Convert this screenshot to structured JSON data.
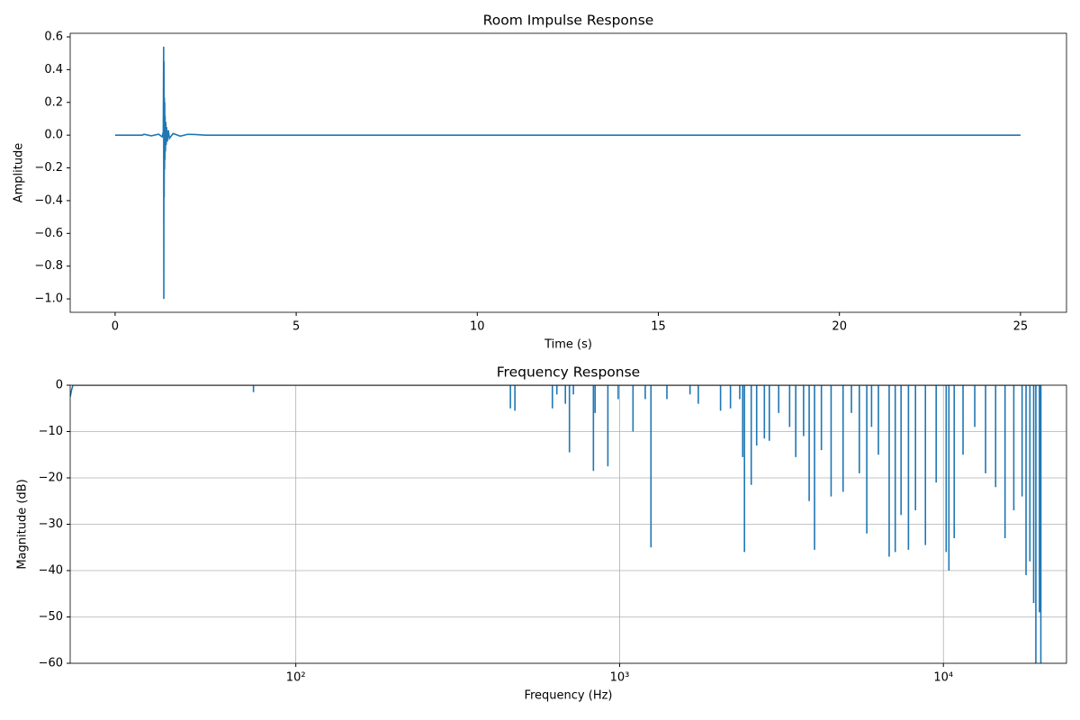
{
  "chart_data": [
    {
      "type": "line",
      "title": "Room Impulse Response",
      "xlabel": "Time (s)",
      "ylabel": "Amplitude",
      "color": "#1f77b4",
      "xlim": [
        -1.24,
        26.27
      ],
      "ylim": [
        -1.082,
        0.622
      ],
      "xticks": [
        0,
        5,
        10,
        15,
        20,
        25
      ],
      "yticks": [
        {
          "value": -1.0,
          "label": "−1.0"
        },
        {
          "value": -0.8,
          "label": "−0.8"
        },
        {
          "value": -0.6,
          "label": "−0.6"
        },
        {
          "value": -0.4,
          "label": "−0.4"
        },
        {
          "value": -0.2,
          "label": "−0.2"
        },
        {
          "value": 0,
          "label": "0.0"
        },
        0.2,
        0.4,
        0.6
      ],
      "grid": false,
      "x": [
        0,
        0.75,
        0.8,
        1.0,
        1.2,
        1.3,
        1.33,
        1.34,
        1.345,
        1.35,
        1.355,
        1.36,
        1.365,
        1.37,
        1.375,
        1.38,
        1.39,
        1.4,
        1.41,
        1.42,
        1.44,
        1.47,
        1.5,
        1.6,
        1.8,
        2.0,
        2.2,
        2.5,
        25
      ],
      "values": [
        0,
        0,
        0.005,
        -0.004,
        0.006,
        -0.01,
        0.02,
        0.54,
        -1.0,
        0.45,
        -0.38,
        0.23,
        -0.21,
        0.2,
        -0.15,
        0.12,
        -0.1,
        0.08,
        -0.06,
        0.05,
        -0.04,
        0.03,
        -0.02,
        0.01,
        -0.006,
        0.005,
        0.004,
        0,
        0
      ]
    },
    {
      "type": "line",
      "title": "Frequency Response",
      "xlabel": "Frequency (Hz)",
      "ylabel": "Magnitude (dB)",
      "color": "#1f77b4",
      "xscale": "log",
      "xlim": [
        20.1,
        24000
      ],
      "ylim": [
        -60,
        0
      ],
      "xticks": [
        {
          "value": 100,
          "label": "10²"
        },
        {
          "value": 1000,
          "label": "10³"
        },
        {
          "value": 10000,
          "label": "10⁴"
        }
      ],
      "yticks": [
        {
          "value": -60,
          "label": "−60"
        },
        {
          "value": -50,
          "label": "−50"
        },
        {
          "value": -40,
          "label": "−40"
        },
        {
          "value": -30,
          "label": "−30"
        },
        {
          "value": -20,
          "label": "−20"
        },
        {
          "value": -10,
          "label": "−10"
        },
        0
      ],
      "grid": true,
      "x": [
        20.1,
        20.3,
        20.5,
        74,
        74,
        74,
        460,
        460,
        460,
        475,
        475,
        475,
        620,
        620,
        620,
        640,
        640,
        640,
        680,
        680,
        680,
        700,
        700,
        700,
        720,
        720,
        720,
        830,
        830,
        830,
        840,
        840,
        840,
        920,
        920,
        920,
        990,
        990,
        990,
        1100,
        1100,
        1100,
        1200,
        1200,
        1200,
        1250,
        1250,
        1250,
        1400,
        1400,
        1400,
        1650,
        1650,
        1650,
        1750,
        1750,
        1750,
        2050,
        2050,
        2050,
        2200,
        2200,
        2200,
        2350,
        2350,
        2350,
        2400,
        2400,
        2400,
        2430,
        2430,
        2430,
        2550,
        2550,
        2550,
        2650,
        2650,
        2650,
        2800,
        2800,
        2800,
        2900,
        2900,
        2900,
        3100,
        3100,
        3100,
        3350,
        3350,
        3350,
        3500,
        3500,
        3500,
        3700,
        3700,
        3700,
        3850,
        3850,
        3850,
        4000,
        4000,
        4000,
        4200,
        4200,
        4200,
        4500,
        4500,
        4500,
        4900,
        4900,
        4900,
        5200,
        5200,
        5200,
        5500,
        5500,
        5500,
        5800,
        5800,
        5800,
        6000,
        6000,
        6000,
        6300,
        6300,
        6300,
        6800,
        6800,
        6800,
        7100,
        7100,
        7100,
        7400,
        7400,
        7400,
        7800,
        7800,
        7800,
        8200,
        8200,
        8200,
        8800,
        8800,
        8800,
        9500,
        9500,
        9500,
        10200,
        10200,
        10200,
        10400,
        10400,
        10400,
        10800,
        10800,
        10800,
        11500,
        11500,
        11500,
        12500,
        12500,
        12500,
        13500,
        13500,
        13500,
        14500,
        14500,
        14500,
        15500,
        15500,
        15500,
        16500,
        16500,
        16500,
        17500,
        17500,
        17500,
        18000,
        18000,
        18000,
        18500,
        18500,
        18500,
        19000,
        19000,
        19000,
        19300,
        19300,
        19300,
        19800,
        19800,
        19800,
        20000,
        20000,
        20000
      ],
      "values": [
        -2.5,
        -1,
        0,
        0,
        -1.5,
        0,
        0,
        -5,
        0,
        0,
        -5.5,
        0,
        0,
        -5,
        0,
        0,
        -2,
        0,
        0,
        -4,
        0,
        0,
        -14.5,
        0,
        0,
        -2,
        0,
        0,
        -18.5,
        0,
        0,
        -6,
        0,
        0,
        -17.5,
        0,
        0,
        -3,
        0,
        0,
        -10,
        0,
        0,
        -3,
        0,
        0,
        -35,
        0,
        0,
        -3,
        0,
        0,
        -2,
        0,
        0,
        -4,
        0,
        0,
        -5.5,
        0,
        0,
        -5,
        0,
        0,
        -3,
        0,
        0,
        -15.5,
        0,
        0,
        -36,
        0,
        0,
        -21.5,
        0,
        0,
        -13,
        0,
        0,
        -11.5,
        0,
        0,
        -12,
        0,
        0,
        -6,
        0,
        0,
        -9,
        0,
        0,
        -15.5,
        0,
        0,
        -11,
        0,
        0,
        -25,
        0,
        0,
        -35.5,
        0,
        0,
        -14,
        0,
        0,
        -24,
        0,
        0,
        -23,
        0,
        0,
        -6,
        0,
        0,
        -19,
        0,
        0,
        -32,
        0,
        0,
        -9,
        0,
        0,
        -15,
        0,
        0,
        -37,
        0,
        0,
        -36,
        0,
        0,
        -28,
        0,
        0,
        -35.5,
        0,
        0,
        -27,
        0,
        0,
        -34.5,
        0,
        0,
        -21,
        0,
        0,
        -36,
        0,
        0,
        -40,
        0,
        0,
        -33,
        0,
        0,
        -15,
        0,
        0,
        -9,
        0,
        0,
        -19,
        0,
        0,
        -22,
        0,
        0,
        -33,
        0,
        0,
        -27,
        0,
        0,
        -24,
        0,
        0,
        -41,
        0,
        0,
        -38,
        0,
        0,
        -47,
        0,
        0,
        -60,
        0,
        0,
        -49,
        0,
        0,
        -60,
        0
      ]
    }
  ]
}
